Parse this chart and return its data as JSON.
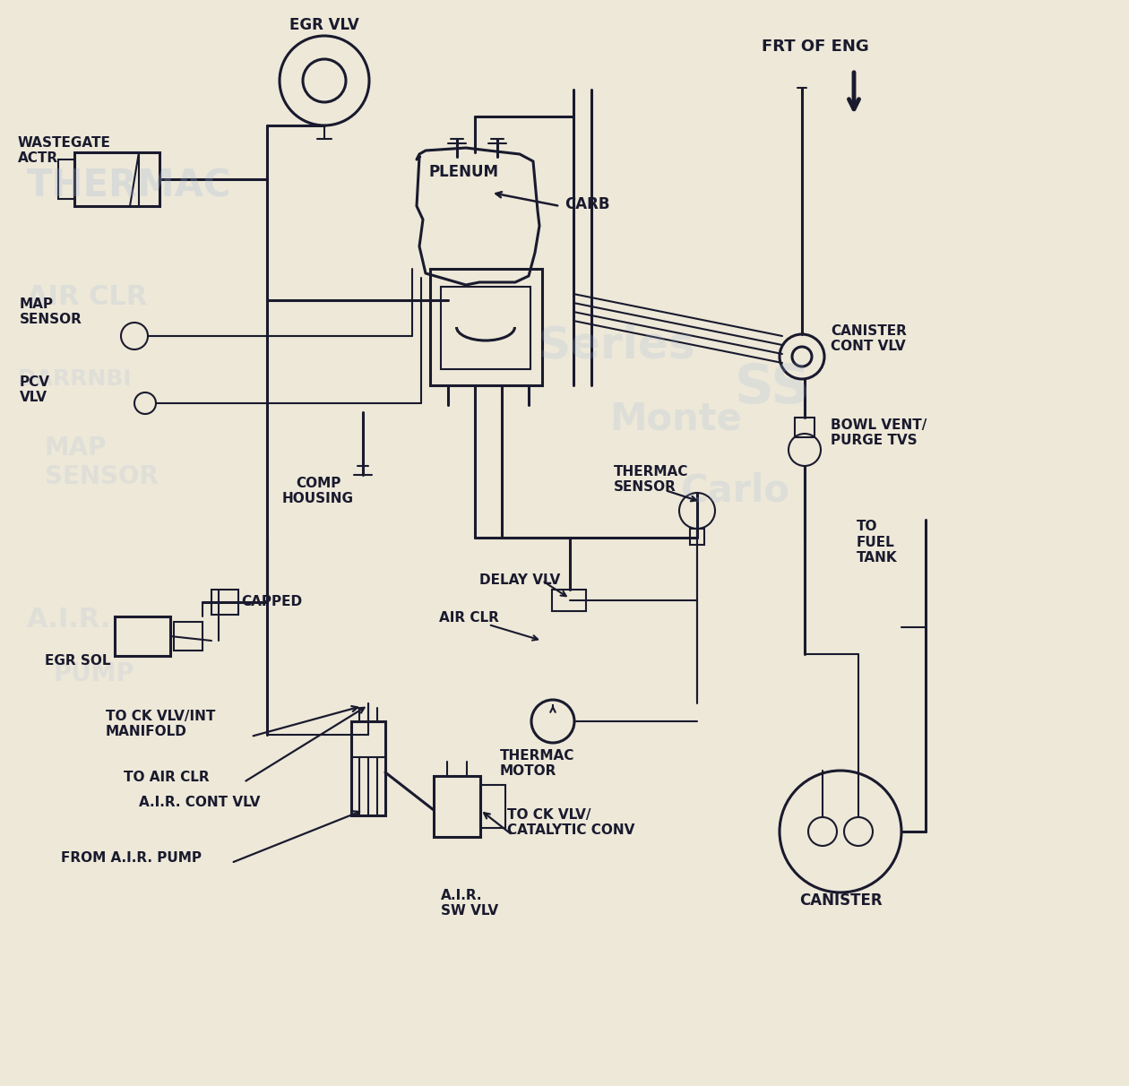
{
  "bg_color": "#EDE8D8",
  "line_color": "#1a1a2e",
  "watermark_color": "#a0b8d8",
  "labels": {
    "egr_vlv": "EGR VLV",
    "wastegate_actr": "WASTEGATE\nACTR",
    "plenum": "PLENUM",
    "carb": "CARB",
    "map_sensor": "MAP\nSENSOR",
    "pcv_vlv": "PCV\nVLV",
    "comp_housing": "COMP\nHOUSING",
    "canister_cont_vlv": "CANISTER\nCONT VLV",
    "bowl_vent": "BOWL VENT/\nPURGE TVS",
    "thermac_sensor": "THERMAC\nSENSOR",
    "delay_vlv": "DELAY VLV",
    "air_clr": "AIR CLR",
    "thermac_motor": "THERMAC\nMOTOR",
    "to_fuel_tank": "TO\nFUEL\nTANK",
    "canister": "CANISTER",
    "capped": "CAPPED",
    "egr_sol": "EGR SOL",
    "to_ck_vlv_int": "TO CK VLV/INT\nMANIFOLD",
    "to_air_clr": "TO AIR CLR",
    "air_cont_vlv": "A.I.R. CONT VLV",
    "from_air_pump": "FROM A.I.R. PUMP",
    "air_sw_vlv": "A.I.R.\nSW VLV",
    "to_ck_vlv_cat": "TO CK VLV/\nCATALYTIC CONV",
    "frt_of_eng": "FRT OF ENG"
  }
}
